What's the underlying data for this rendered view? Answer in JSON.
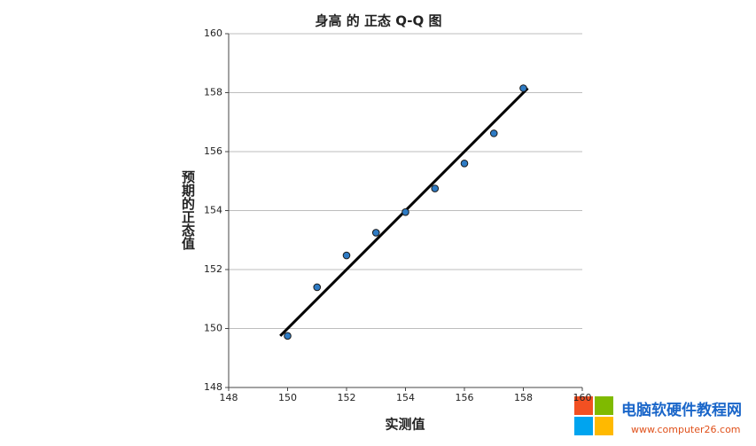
{
  "chart_data": {
    "type": "scatter",
    "title": "身高 的 正态 Q-Q 图",
    "x_label": "实测值",
    "y_label": "预期的正态值",
    "x": [
      150,
      151,
      152,
      153,
      154,
      155,
      156,
      157,
      158
    ],
    "y": [
      149.75,
      151.4,
      152.48,
      153.25,
      153.95,
      154.75,
      155.6,
      156.62,
      158.15
    ],
    "color": "#2e7bc4",
    "reference_line": {
      "x": [
        149.75,
        158.15
      ],
      "y": [
        149.75,
        158.15
      ],
      "color": "#000000"
    },
    "xlim": [
      148,
      160
    ],
    "ylim": [
      148,
      160
    ],
    "xticks": [
      148,
      150,
      152,
      154,
      156,
      158,
      160
    ],
    "yticks": [
      148,
      150,
      152,
      154,
      156,
      158,
      160
    ],
    "grid": true
  },
  "watermark": {
    "title": "电脑软硬件教程网",
    "url": "www.computer26.com"
  }
}
